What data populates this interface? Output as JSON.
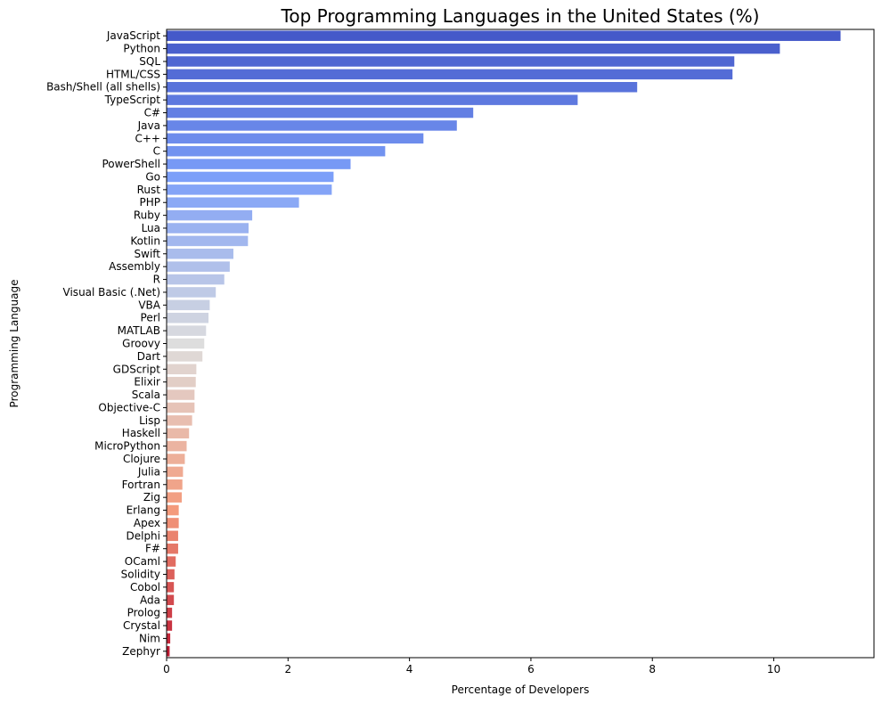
{
  "chart_data": {
    "type": "bar",
    "orientation": "horizontal",
    "title": "Top Programming Languages in the United States (%)",
    "xlabel": "Percentage of Developers",
    "ylabel": "Programming Language",
    "xlim": [
      0,
      11.65
    ],
    "xticks": [
      0,
      2,
      4,
      6,
      8,
      10
    ],
    "grid": false,
    "palette": "coolwarm",
    "categories": [
      "JavaScript",
      "Python",
      "SQL",
      "HTML/CSS",
      "Bash/Shell (all shells)",
      "TypeScript",
      "C#",
      "Java",
      "C++",
      "C",
      "PowerShell",
      "Go",
      "Rust",
      "PHP",
      "Ruby",
      "Lua",
      "Kotlin",
      "Swift",
      "Assembly",
      "R",
      "Visual Basic (.Net)",
      "VBA",
      "Perl",
      "MATLAB",
      "Groovy",
      "Dart",
      "GDScript",
      "Elixir",
      "Scala",
      "Objective-C",
      "Lisp",
      "Haskell",
      "MicroPython",
      "Clojure",
      "Julia",
      "Fortran",
      "Zig",
      "Erlang",
      "Apex",
      "Delphi",
      "F#",
      "OCaml",
      "Solidity",
      "Cobol",
      "Ada",
      "Prolog",
      "Crystal",
      "Nim",
      "Zephyr"
    ],
    "values": [
      11.1,
      10.1,
      9.35,
      9.32,
      7.75,
      6.77,
      5.05,
      4.78,
      4.23,
      3.6,
      3.03,
      2.75,
      2.72,
      2.18,
      1.41,
      1.35,
      1.34,
      1.1,
      1.04,
      0.95,
      0.81,
      0.71,
      0.69,
      0.65,
      0.62,
      0.59,
      0.49,
      0.48,
      0.46,
      0.46,
      0.42,
      0.37,
      0.33,
      0.3,
      0.27,
      0.26,
      0.25,
      0.2,
      0.2,
      0.19,
      0.19,
      0.15,
      0.13,
      0.12,
      0.12,
      0.09,
      0.09,
      0.06,
      0.05
    ]
  }
}
